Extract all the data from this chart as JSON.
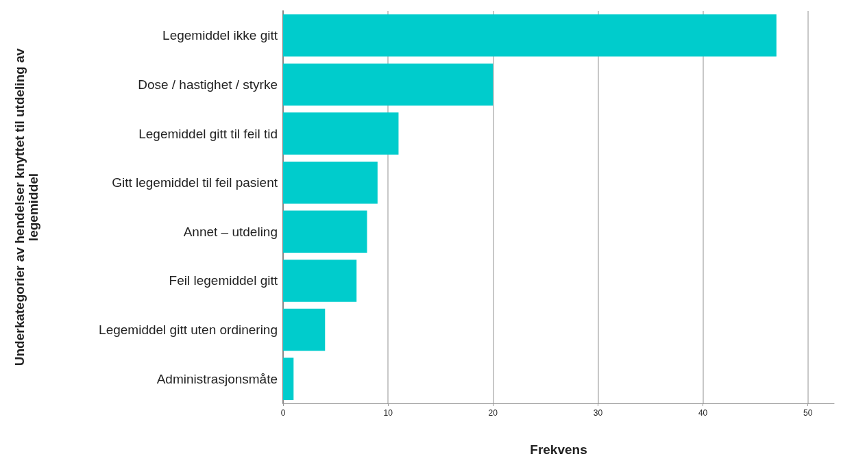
{
  "chart_data": {
    "type": "bar",
    "orientation": "horizontal",
    "xlabel": "Frekvens",
    "ylabel": "Underkategorier av hendelser knyttet til utdeling av legemiddel",
    "categories": [
      "Legemiddel ikke gitt",
      "Dose / hastighet / styrke",
      "Legemiddel gitt til feil tid",
      "Gitt legemiddel til feil pasient",
      "Annet – utdeling",
      "Feil legemiddel gitt",
      "Legemiddel gitt uten ordinering",
      "Administrasjonsmåte"
    ],
    "values": [
      47,
      20,
      11,
      9,
      8,
      7,
      4,
      1
    ],
    "color": "#00cccc",
    "xlim": [
      0,
      52.5
    ],
    "xticks": [
      0,
      10,
      20,
      30,
      40,
      50
    ],
    "grid": "x"
  }
}
